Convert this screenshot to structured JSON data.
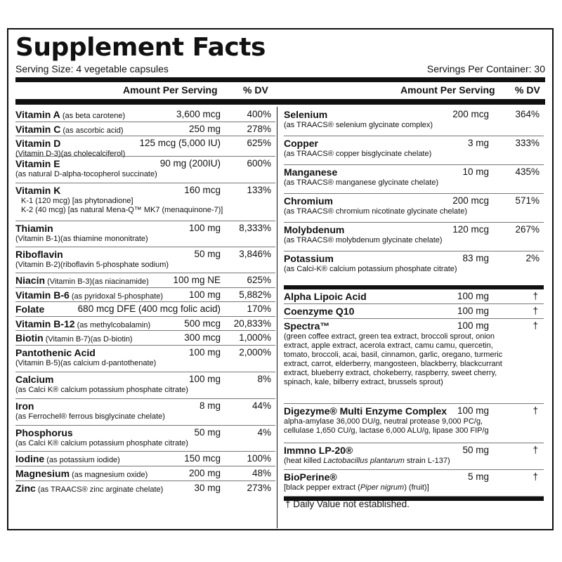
{
  "title": "Supplement Facts",
  "serving_size": "Serving Size: 4 vegetable capsules",
  "servings_per_container": "Servings Per Container: 30",
  "header": {
    "amount": "Amount Per Serving",
    "dv": "% DV"
  },
  "left_rows": [
    {
      "name": "Vitamin A",
      "note": "(as beta carotene)",
      "amount": "3,600 mcg",
      "dv": "400%",
      "sub": []
    },
    {
      "name": "Vitamin C",
      "note": "(as ascorbic acid)",
      "amount": "250 mg",
      "dv": "278%",
      "sub": []
    },
    {
      "name": "Vitamin D",
      "note": "",
      "amount": "125 mcg (5,000 IU)",
      "dv": "625%",
      "sub": [
        "(Vitamin D-3)(as cholecalciferol)"
      ]
    },
    {
      "name": "Vitamin E",
      "note": "",
      "amount": "90 mg (200IU)",
      "dv": "600%",
      "sub": [
        "(as natural D-alpha-tocopherol succinate)"
      ]
    },
    {
      "name": "Vitamin K",
      "note": "",
      "amount": "160 mcg",
      "dv": "133%",
      "sub": [
        "K-1 (120 mcg) [as phytonadione]",
        "K-2 (40 mcg) [as natural Mena-Q™ MK7 (menaquinone-7)]"
      ]
    },
    {
      "name": "Thiamin",
      "note": "",
      "amount": "100 mg",
      "dv": "8,333%",
      "sub": [
        "(Vitamin B-1)(as thiamine mononitrate)"
      ]
    },
    {
      "name": "Riboflavin",
      "note": "",
      "amount": "50 mg",
      "dv": "3,846%",
      "sub": [
        "(Vitamin B-2)(riboflavin 5-phosphate sodium)"
      ]
    },
    {
      "name": "Niacin",
      "note": "(Vitamin B-3)(as niacinamide)",
      "amount": "100 mg NE",
      "dv": "625%",
      "sub": []
    },
    {
      "name": "Vitamin B-6",
      "note": "(as pyridoxal 5-phosphate)",
      "amount": "100 mg",
      "dv": "5,882%",
      "sub": []
    },
    {
      "name": "Folate",
      "note": "",
      "amount": "680 mcg DFE (400 mcg folic acid)",
      "dv": "170%",
      "sub": []
    },
    {
      "name": "Vitamin B-12",
      "note": "(as methylcobalamin)",
      "amount": "500 mcg",
      "dv": "20,833%",
      "sub": []
    },
    {
      "name": "Biotin",
      "note": "(Vitamin B-7)(as D-biotin)",
      "amount": "300 mcg",
      "dv": "1,000%",
      "sub": []
    },
    {
      "name": "Pantothenic Acid",
      "note": "",
      "amount": "100 mg",
      "dv": "2,000%",
      "sub": [
        "(Vitamin B-5)(as calcium d-pantothenate)"
      ]
    },
    {
      "name": "Calcium",
      "note": "",
      "amount": "100 mg",
      "dv": "8%",
      "sub": [
        "(as Calci K® calcium potassium phosphate citrate)"
      ]
    },
    {
      "name": "Iron",
      "note": "",
      "amount": "8 mg",
      "dv": "44%",
      "sub": [
        "(as Ferrochel® ferrous bisglycinate chelate)"
      ]
    },
    {
      "name": "Phosphorus",
      "note": "",
      "amount": "50 mg",
      "dv": "4%",
      "sub": [
        "(as Calci K® calcium potassium phosphate citrate)"
      ]
    },
    {
      "name": "Iodine",
      "note": "(as potassium iodide)",
      "amount": "150 mcg",
      "dv": "100%",
      "sub": []
    },
    {
      "name": "Magnesium",
      "note": "(as magnesium oxide)",
      "amount": "200 mg",
      "dv": "48%",
      "sub": []
    },
    {
      "name": "Zinc",
      "note": "(as TRAACS® zinc arginate chelate)",
      "amount": "30 mg",
      "dv": "273%",
      "sub": []
    }
  ],
  "right_rows": [
    {
      "name": "Selenium",
      "amount": "200 mcg",
      "dv": "364%",
      "sub": [
        "(as TRAACS® selenium glycinate complex)"
      ]
    },
    {
      "name": "Copper",
      "amount": "3 mg",
      "dv": "333%",
      "sub": [
        "(as TRAACS® copper bisglycinate chelate)"
      ]
    },
    {
      "name": "Manganese",
      "amount": "10 mg",
      "dv": "435%",
      "sub": [
        "(as TRAACS® manganese glycinate chelate)"
      ]
    },
    {
      "name": "Chromium",
      "amount": "200 mcg",
      "dv": "571%",
      "sub": [
        "(as TRAACS® chromium nicotinate glycinate chelate)"
      ]
    },
    {
      "name": "Molybdenum",
      "amount": "120 mcg",
      "dv": "267%",
      "sub": [
        "(as TRAACS® molybdenum glycinate chelate)"
      ]
    },
    {
      "name": "Potassium",
      "amount": "83 mg",
      "dv": "2%",
      "sub": [
        "(as Calci-K® calcium potassium phosphate citrate)"
      ]
    }
  ],
  "blend_rows": [
    {
      "name": "Alpha Lipoic Acid",
      "amount": "100 mg",
      "dv": "†",
      "sub": []
    },
    {
      "name": "Coenzyme Q10",
      "amount": "100 mg",
      "dv": "†",
      "sub": []
    },
    {
      "name": "Spectra™",
      "amount": "100 mg",
      "dv": "†",
      "sub": [
        "(green coffee extract, green tea extract, broccoli sprout, onion",
        "extract, apple extract, acerola extract, camu camu, quercetin,",
        "tomato, broccoli, acai, basil, cinnamon, garlic, oregano, turmeric",
        "extract, carrot, elderberry, mangosteen, blackberry, blackcurrant",
        "extract, blueberry extract, chokeberry, raspberry, sweet cherry,",
        "spinach, kale, bilberry extract, brussels sprout)"
      ]
    },
    {
      "name": "Digezyme® Multi Enzyme Complex",
      "amount": "100 mg",
      "dv": "†",
      "sub": [
        "alpha-amylase 36,000 DU/g, neutral protease 9,000 PC/g,",
        "cellulase 1,650 CU/g, lactase 6,000 ALU/g, lipase 300 FIP/g"
      ]
    },
    {
      "name": "Immno LP-20®",
      "amount": "50 mg",
      "dv": "†",
      "sub_parts": {
        "pre": "(heat killed ",
        "ital": "Lactobacillus plantarum",
        "post": " strain L-137)"
      }
    },
    {
      "name": "BioPerine®",
      "amount": "5 mg",
      "dv": "†",
      "sub_parts": {
        "pre": "[black pepper extract (",
        "ital": "Piper nigrum",
        "post": ") (fruit)]"
      }
    }
  ],
  "footnote": "† Daily Value not established."
}
